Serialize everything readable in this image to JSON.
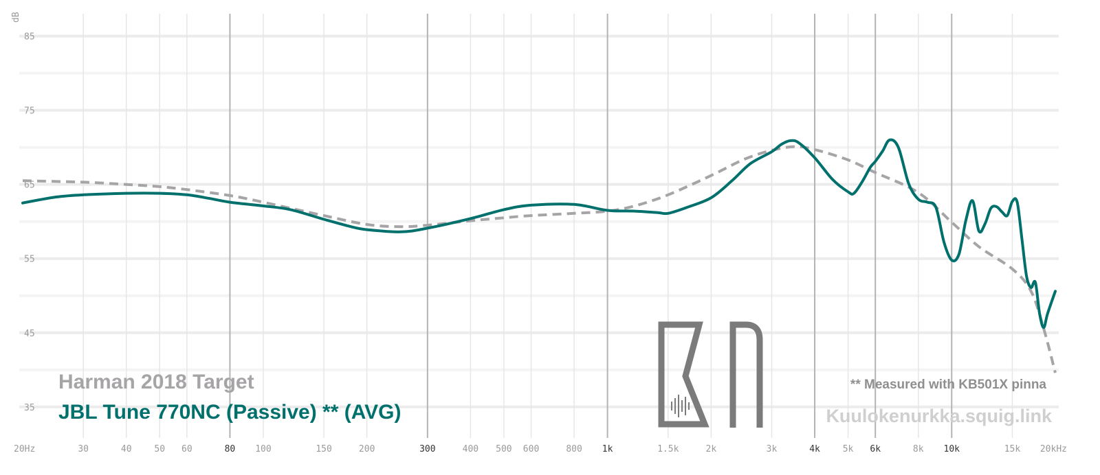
{
  "chart_data": {
    "type": "line",
    "ylabel": "dB",
    "y_ticks": [
      85,
      75,
      65,
      55,
      45,
      35
    ],
    "ylim": [
      31,
      87
    ],
    "xlim": [
      20,
      20000
    ],
    "x_scale": "log",
    "x_ticks": [
      {
        "label": "20Hz",
        "value": 20,
        "major": false
      },
      {
        "label": "30",
        "value": 30,
        "major": false
      },
      {
        "label": "40",
        "value": 40,
        "major": false
      },
      {
        "label": "50",
        "value": 50,
        "major": false
      },
      {
        "label": "60",
        "value": 60,
        "major": false
      },
      {
        "label": "80",
        "value": 80,
        "major": true
      },
      {
        "label": "100",
        "value": 100,
        "major": false
      },
      {
        "label": "150",
        "value": 150,
        "major": false
      },
      {
        "label": "200",
        "value": 200,
        "major": false
      },
      {
        "label": "300",
        "value": 300,
        "major": true
      },
      {
        "label": "400",
        "value": 400,
        "major": false
      },
      {
        "label": "500",
        "value": 500,
        "major": false
      },
      {
        "label": "600",
        "value": 600,
        "major": false
      },
      {
        "label": "800",
        "value": 800,
        "major": false
      },
      {
        "label": "1k",
        "value": 1000,
        "major": true
      },
      {
        "label": "1.5k",
        "value": 1500,
        "major": false
      },
      {
        "label": "2k",
        "value": 2000,
        "major": false
      },
      {
        "label": "3k",
        "value": 3000,
        "major": false
      },
      {
        "label": "4k",
        "value": 4000,
        "major": true
      },
      {
        "label": "5k",
        "value": 5000,
        "major": false
      },
      {
        "label": "6k",
        "value": 6000,
        "major": true
      },
      {
        "label": "8k",
        "value": 8000,
        "major": false
      },
      {
        "label": "10k",
        "value": 10000,
        "major": true
      },
      {
        "label": "15k",
        "value": 15000,
        "major": false
      },
      {
        "label": "20kHz",
        "value": 20000,
        "major": false
      }
    ],
    "grid": true,
    "legend_position": "bottom-left",
    "series": [
      {
        "name": "Harman 2018 Target",
        "color": "#a7a4a7",
        "style": "dashed",
        "points": [
          [
            20,
            65.5
          ],
          [
            30,
            65.3
          ],
          [
            40,
            65.0
          ],
          [
            50,
            64.7
          ],
          [
            60,
            64.3
          ],
          [
            80,
            63.5
          ],
          [
            100,
            62.6
          ],
          [
            150,
            60.8
          ],
          [
            200,
            59.6
          ],
          [
            250,
            59.3
          ],
          [
            300,
            59.5
          ],
          [
            400,
            60.1
          ],
          [
            500,
            60.5
          ],
          [
            600,
            60.8
          ],
          [
            800,
            61.1
          ],
          [
            1000,
            61.4
          ],
          [
            1200,
            62.1
          ],
          [
            1500,
            63.6
          ],
          [
            2000,
            66.2
          ],
          [
            2500,
            68.4
          ],
          [
            3000,
            69.6
          ],
          [
            3500,
            70.1
          ],
          [
            4000,
            69.7
          ],
          [
            5000,
            68.3
          ],
          [
            6000,
            66.6
          ],
          [
            8000,
            63.9
          ],
          [
            10000,
            59.9
          ],
          [
            12000,
            56.6
          ],
          [
            15000,
            53.6
          ],
          [
            17000,
            50.6
          ],
          [
            18500,
            45.6
          ],
          [
            20000,
            39.6
          ]
        ]
      },
      {
        "name": "JBL Tune 770NC (Passive) ** (AVG)",
        "color": "#00706c",
        "style": "solid",
        "points": [
          [
            20,
            62.5
          ],
          [
            25,
            63.3
          ],
          [
            30,
            63.6
          ],
          [
            40,
            63.8
          ],
          [
            50,
            63.8
          ],
          [
            60,
            63.6
          ],
          [
            70,
            63.1
          ],
          [
            80,
            62.6
          ],
          [
            100,
            62.1
          ],
          [
            120,
            61.6
          ],
          [
            150,
            60.3
          ],
          [
            180,
            59.3
          ],
          [
            200,
            58.9
          ],
          [
            250,
            58.6
          ],
          [
            300,
            59.1
          ],
          [
            400,
            60.4
          ],
          [
            500,
            61.6
          ],
          [
            600,
            62.2
          ],
          [
            800,
            62.3
          ],
          [
            1000,
            61.5
          ],
          [
            1200,
            61.4
          ],
          [
            1400,
            61.2
          ],
          [
            1500,
            61.1
          ],
          [
            1700,
            61.9
          ],
          [
            2000,
            63.2
          ],
          [
            2300,
            65.5
          ],
          [
            2600,
            67.8
          ],
          [
            3000,
            69.4
          ],
          [
            3200,
            70.4
          ],
          [
            3400,
            70.9
          ],
          [
            3600,
            70.6
          ],
          [
            4000,
            68.6
          ],
          [
            4500,
            65.7
          ],
          [
            5000,
            64.0
          ],
          [
            5200,
            63.8
          ],
          [
            5500,
            65.4
          ],
          [
            5800,
            67.3
          ],
          [
            6000,
            68.1
          ],
          [
            6300,
            69.5
          ],
          [
            6600,
            71.0
          ],
          [
            7000,
            70.0
          ],
          [
            7500,
            65.1
          ],
          [
            8000,
            63.0
          ],
          [
            8500,
            62.6
          ],
          [
            9000,
            61.9
          ],
          [
            9500,
            57.2
          ],
          [
            10000,
            54.8
          ],
          [
            10500,
            55.6
          ],
          [
            11000,
            60.2
          ],
          [
            11500,
            62.8
          ],
          [
            12000,
            58.7
          ],
          [
            12500,
            59.7
          ],
          [
            13000,
            61.8
          ],
          [
            13500,
            62.0
          ],
          [
            14000,
            61.3
          ],
          [
            14500,
            60.8
          ],
          [
            15000,
            62.7
          ],
          [
            15500,
            62.6
          ],
          [
            16000,
            57.6
          ],
          [
            16500,
            52.6
          ],
          [
            17000,
            51.1
          ],
          [
            17500,
            51.8
          ],
          [
            18000,
            47.6
          ],
          [
            18500,
            45.7
          ],
          [
            19000,
            47.6
          ],
          [
            20000,
            50.6
          ]
        ]
      }
    ],
    "note": "** Measured with KB501X pinna",
    "watermark": "Kuulokenurkka.squig.link"
  }
}
